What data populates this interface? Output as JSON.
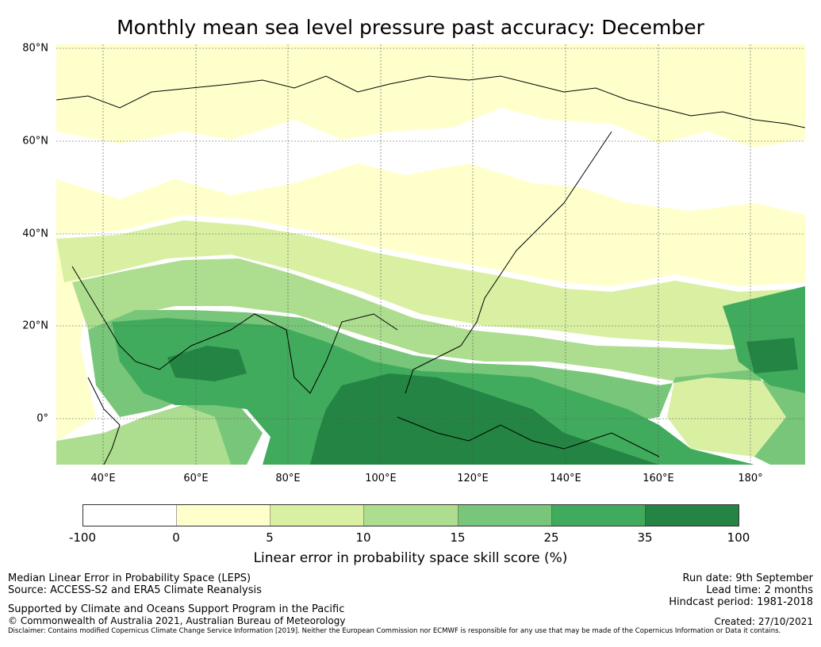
{
  "title": "Monthly mean sea level pressure past accuracy: December",
  "map": {
    "latitude_labels": [
      "80°N",
      "60°N",
      "40°N",
      "20°N",
      "0°"
    ],
    "longitude_labels": [
      "40°E",
      "60°E",
      "80°E",
      "100°E",
      "120°E",
      "140°E",
      "160°E",
      "180°"
    ],
    "colors": {
      "c_-100_0": "#ffffff",
      "c_0_5": "#ffffcc",
      "c_5_10": "#d9f0a3",
      "c_10_15": "#addd8e",
      "c_15_25": "#78c679",
      "c_25_35": "#41ab5d",
      "c_35_100": "#238443"
    }
  },
  "colorbar": {
    "ticks": [
      "-100",
      "0",
      "5",
      "10",
      "15",
      "25",
      "35",
      "100"
    ],
    "colors": [
      "#ffffff",
      "#ffffcc",
      "#d9f0a3",
      "#addd8e",
      "#78c679",
      "#41ab5d",
      "#238443"
    ],
    "label": "Linear error in probability space skill score (%)"
  },
  "footer": {
    "left_line1": "Median Linear Error in Probability Space (LEPS)",
    "left_line2": "Source: ACCESS-S2 and ERA5 Climate Reanalysis",
    "supported": "Supported by Climate and Oceans Support Program in the Pacific",
    "copyright": "© Commonwealth of Australia 2021, Australian Bureau of Meteorology",
    "run_date": "Run date: 9th September",
    "lead_time": "Lead time: 2 months",
    "hindcast": "Hindcast period: 1981-2018",
    "created": "Created: 27/10/2021",
    "disclaimer": "Disclaimer: Contains modified Copernicus Climate Change Service Information [2019]. Neither the European Commission nor ECMWF is responsible for any use that may be made of the Copernicus Information or Data it contains."
  }
}
